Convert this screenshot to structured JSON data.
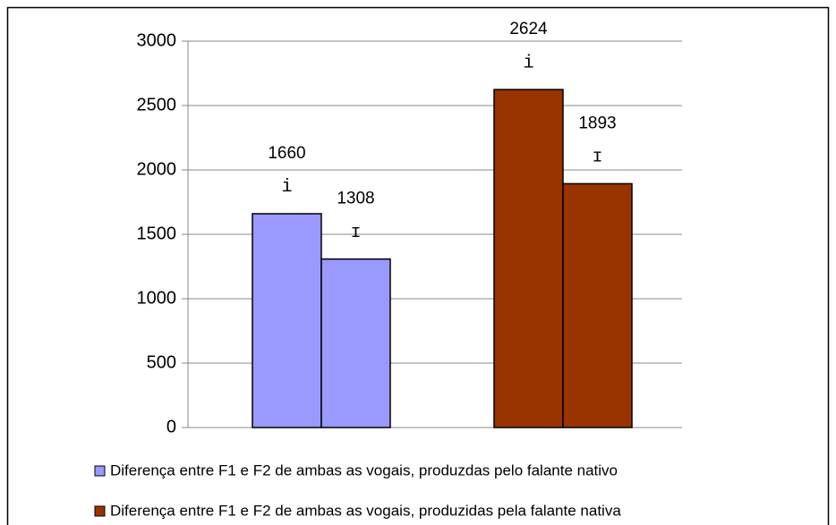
{
  "chart_data": {
    "type": "bar",
    "categories": [
      "i",
      "ɪ"
    ],
    "series": [
      {
        "name": "Diferença entre F1 e F2 de ambas as vogais, produzdas pelo falante nativo",
        "color": "#9999ff",
        "values": [
          1660,
          1308
        ]
      },
      {
        "name": "Diferença entre F1 e F2 de ambas as vogais, produzidas pela falante nativa",
        "color": "#993300",
        "values": [
          2624,
          1893
        ]
      }
    ],
    "ylim": [
      0,
      3000
    ],
    "yticks": [
      0,
      500,
      1000,
      1500,
      2000,
      2500,
      3000
    ],
    "grid": true,
    "legend": "bottom"
  }
}
